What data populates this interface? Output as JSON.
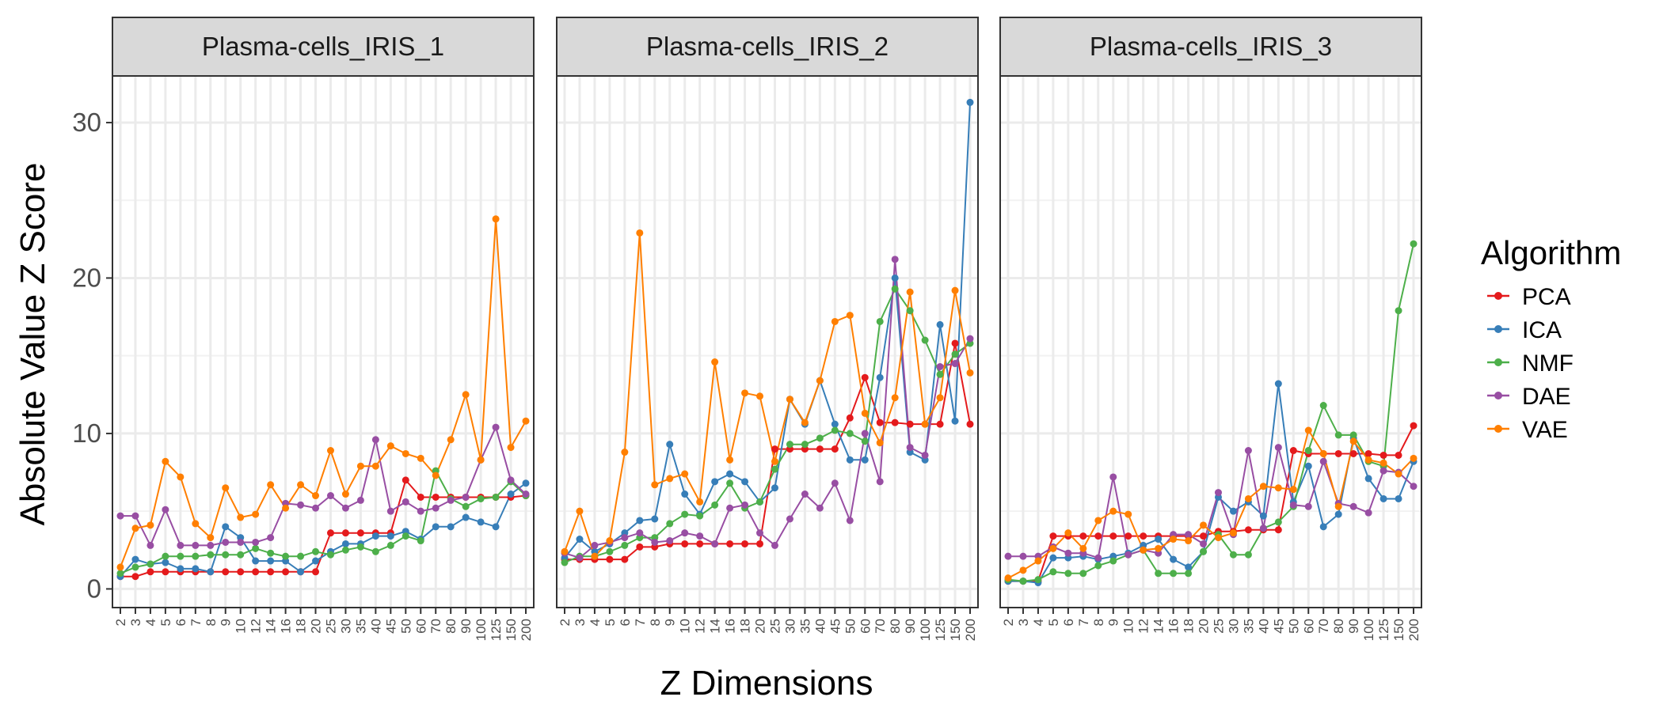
{
  "chart_data": {
    "type": "line",
    "xlabel": "Z Dimensions",
    "ylabel": "Absolute Value Z Score",
    "ylim": [
      -1.2,
      33
    ],
    "yticks": [
      0,
      10,
      20,
      30
    ],
    "grid": true,
    "legend": {
      "title": "Algorithm",
      "position": "right",
      "entries": [
        "PCA",
        "ICA",
        "NMF",
        "DAE",
        "VAE"
      ]
    },
    "x_categories": [
      "2",
      "3",
      "4",
      "5",
      "6",
      "7",
      "8",
      "9",
      "10",
      "12",
      "14",
      "16",
      "18",
      "20",
      "25",
      "30",
      "35",
      "40",
      "45",
      "50",
      "60",
      "70",
      "80",
      "90",
      "100",
      "125",
      "150",
      "200"
    ],
    "series_colors": {
      "PCA": "#E41A1C",
      "ICA": "#377EB8",
      "NMF": "#4DAF4A",
      "DAE": "#984EA3",
      "VAE": "#FF7F00"
    },
    "panels": [
      {
        "title": "Plasma-cells_IRIS_1",
        "series": [
          {
            "name": "PCA",
            "values": [
              0.8,
              0.8,
              1.1,
              1.1,
              1.1,
              1.1,
              1.1,
              1.1,
              1.1,
              1.1,
              1.1,
              1.1,
              1.1,
              1.1,
              3.6,
              3.6,
              3.6,
              3.6,
              3.6,
              7.0,
              5.9,
              5.9,
              5.9,
              5.9,
              5.9,
              5.9,
              5.9,
              6.0
            ]
          },
          {
            "name": "ICA",
            "values": [
              0.8,
              1.9,
              1.6,
              1.7,
              1.3,
              1.3,
              1.1,
              4.0,
              3.3,
              1.8,
              1.8,
              1.8,
              1.1,
              1.8,
              2.4,
              2.9,
              2.9,
              3.4,
              3.4,
              3.7,
              3.2,
              4.0,
              4.0,
              4.6,
              4.3,
              4.0,
              6.1,
              6.8
            ]
          },
          {
            "name": "NMF",
            "values": [
              1.0,
              1.4,
              1.6,
              2.1,
              2.1,
              2.1,
              2.2,
              2.2,
              2.2,
              2.6,
              2.3,
              2.1,
              2.1,
              2.4,
              2.2,
              2.5,
              2.7,
              2.4,
              2.8,
              3.4,
              3.1,
              7.6,
              5.8,
              5.3,
              5.8,
              5.9,
              6.9,
              6.0
            ]
          },
          {
            "name": "DAE",
            "values": [
              4.7,
              4.7,
              2.8,
              5.1,
              2.8,
              2.8,
              2.8,
              3.0,
              3.0,
              3.0,
              3.3,
              5.5,
              5.4,
              5.2,
              6.0,
              5.2,
              5.7,
              9.6,
              5.0,
              5.6,
              5.0,
              5.2,
              5.7,
              5.9,
              8.3,
              10.4,
              7.0,
              6.1
            ]
          },
          {
            "name": "VAE",
            "values": [
              1.4,
              3.9,
              4.1,
              8.2,
              7.2,
              4.2,
              3.3,
              6.5,
              4.6,
              4.8,
              6.7,
              5.2,
              6.7,
              6.0,
              8.9,
              6.1,
              7.9,
              7.9,
              9.2,
              8.7,
              8.4,
              7.3,
              9.6,
              12.5,
              8.3,
              23.8,
              9.1,
              10.8
            ]
          }
        ]
      },
      {
        "title": "Plasma-cells_IRIS_2",
        "series": [
          {
            "name": "PCA",
            "values": [
              1.9,
              1.9,
              1.9,
              1.9,
              1.9,
              2.7,
              2.7,
              2.9,
              2.9,
              2.9,
              2.9,
              2.9,
              2.9,
              2.9,
              9.0,
              9.0,
              9.0,
              9.0,
              9.0,
              11.0,
              13.6,
              10.7,
              10.7,
              10.6,
              10.6,
              10.6,
              15.8,
              10.6
            ]
          },
          {
            "name": "ICA",
            "values": [
              2.0,
              3.2,
              2.4,
              2.9,
              3.6,
              4.4,
              4.5,
              9.3,
              6.1,
              4.8,
              6.9,
              7.4,
              6.9,
              5.6,
              6.5,
              12.2,
              10.6,
              13.4,
              10.6,
              8.3,
              8.3,
              13.6,
              20.0,
              8.8,
              8.3,
              17.0,
              10.8,
              31.3
            ]
          },
          {
            "name": "NMF",
            "values": [
              1.7,
              2.1,
              2.1,
              2.4,
              2.8,
              3.3,
              3.3,
              4.2,
              4.8,
              4.7,
              5.4,
              6.8,
              5.2,
              5.6,
              7.7,
              9.3,
              9.3,
              9.7,
              10.2,
              10.0,
              9.5,
              17.2,
              19.3,
              17.9,
              16.0,
              13.8,
              15.1,
              15.8
            ]
          },
          {
            "name": "DAE",
            "values": [
              2.3,
              2.0,
              2.8,
              3.0,
              3.3,
              3.6,
              3.0,
              3.1,
              3.6,
              3.4,
              2.9,
              5.2,
              5.4,
              3.6,
              2.8,
              4.5,
              6.1,
              5.2,
              6.8,
              4.4,
              10.0,
              6.9,
              21.2,
              9.1,
              8.6,
              14.3,
              14.5,
              16.1
            ]
          },
          {
            "name": "VAE",
            "values": [
              2.4,
              5.0,
              2.1,
              3.1,
              8.8,
              22.9,
              6.7,
              7.1,
              7.4,
              5.6,
              14.6,
              8.3,
              12.6,
              12.4,
              8.2,
              12.2,
              10.7,
              13.4,
              17.2,
              17.6,
              11.3,
              9.4,
              12.3,
              19.1,
              10.6,
              12.3,
              19.2,
              13.9
            ]
          }
        ]
      },
      {
        "title": "Plasma-cells_IRIS_3",
        "series": [
          {
            "name": "PCA",
            "values": [
              0.5,
              0.5,
              0.5,
              3.4,
              3.4,
              3.4,
              3.4,
              3.4,
              3.4,
              3.4,
              3.4,
              3.4,
              3.4,
              3.4,
              3.7,
              3.7,
              3.8,
              3.8,
              3.8,
              8.9,
              8.7,
              8.7,
              8.7,
              8.7,
              8.7,
              8.6,
              8.6,
              10.5
            ]
          },
          {
            "name": "ICA",
            "values": [
              0.5,
              0.5,
              0.4,
              2.0,
              2.0,
              2.1,
              1.9,
              2.1,
              2.3,
              2.8,
              3.2,
              1.9,
              1.4,
              2.4,
              5.9,
              5.0,
              5.6,
              4.7,
              13.2,
              5.6,
              7.9,
              4.0,
              4.8,
              9.7,
              7.1,
              5.8,
              5.8,
              8.2
            ]
          },
          {
            "name": "NMF",
            "values": [
              0.6,
              0.5,
              0.6,
              1.1,
              1.0,
              1.0,
              1.5,
              1.8,
              2.2,
              2.5,
              1.0,
              1.0,
              1.0,
              2.4,
              3.5,
              2.2,
              2.2,
              3.9,
              4.3,
              5.3,
              8.9,
              11.8,
              9.9,
              9.9,
              8.2,
              7.9,
              17.9,
              22.2
            ]
          },
          {
            "name": "DAE",
            "values": [
              2.1,
              2.1,
              2.1,
              2.7,
              2.3,
              2.3,
              2.0,
              7.2,
              2.2,
              2.5,
              2.3,
              3.5,
              3.5,
              2.9,
              6.2,
              3.5,
              8.9,
              3.9,
              9.1,
              5.4,
              5.3,
              8.2,
              5.5,
              5.3,
              4.9,
              7.6,
              7.5,
              6.6
            ]
          },
          {
            "name": "VAE",
            "values": [
              0.7,
              1.2,
              1.8,
              2.6,
              3.6,
              2.6,
              4.4,
              5.0,
              4.8,
              2.5,
              2.6,
              3.2,
              3.1,
              4.1,
              3.3,
              3.6,
              5.8,
              6.6,
              6.5,
              6.4,
              10.2,
              8.7,
              5.3,
              9.5,
              8.3,
              8.1,
              7.4,
              8.4
            ]
          }
        ]
      }
    ]
  }
}
